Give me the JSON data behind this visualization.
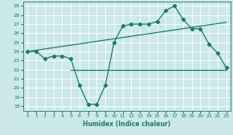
{
  "xlabel": "Humidex (Indice chaleur)",
  "bg_color": "#cce8e8",
  "grid_color": "#ffffff",
  "line_color": "#1a7a6e",
  "xlim": [
    -0.5,
    23.5
  ],
  "ylim": [
    17.5,
    29.5
  ],
  "yticks": [
    18,
    19,
    20,
    21,
    22,
    23,
    24,
    25,
    26,
    27,
    28,
    29
  ],
  "xticks": [
    0,
    1,
    2,
    3,
    4,
    5,
    6,
    7,
    8,
    9,
    10,
    11,
    12,
    13,
    14,
    15,
    16,
    17,
    18,
    19,
    20,
    21,
    22,
    23
  ],
  "series": [
    {
      "x": [
        0,
        1,
        2,
        3,
        4,
        5,
        6,
        7,
        8,
        9,
        10,
        11,
        12,
        13,
        14,
        15,
        16,
        17,
        18,
        19,
        20,
        21,
        22,
        23
      ],
      "y": [
        24,
        24,
        23.2,
        23.5,
        23.5,
        23.2,
        20.3,
        18.2,
        18.2,
        20.3,
        25,
        26.8,
        27,
        27,
        27,
        27.3,
        28.5,
        29,
        27.5,
        26.5,
        26.5,
        24.8,
        23.8,
        22.2
      ],
      "marker": "D",
      "markersize": 2.2,
      "linewidth": 0.9
    },
    {
      "x": [
        0,
        23
      ],
      "y": [
        24,
        27.2
      ],
      "marker": null,
      "markersize": 0,
      "linewidth": 0.9
    },
    {
      "x": [
        5,
        23
      ],
      "y": [
        22,
        22
      ],
      "marker": null,
      "markersize": 0,
      "linewidth": 0.9
    }
  ]
}
